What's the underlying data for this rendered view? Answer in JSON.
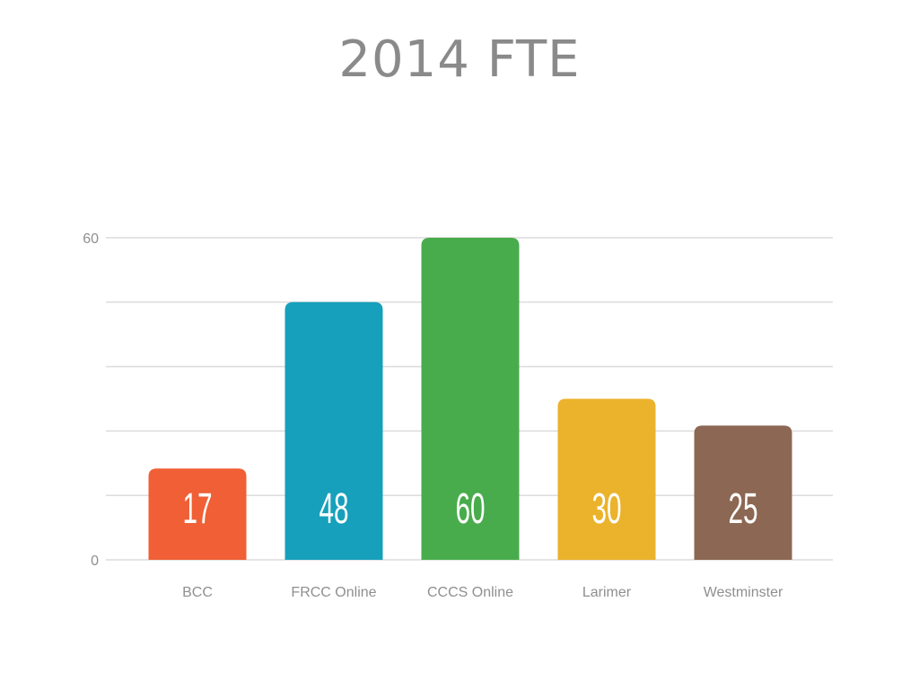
{
  "chart_data": {
    "type": "bar",
    "title": "2014 FTE",
    "categories": [
      "BCC",
      "FRCC Online",
      "CCCS Online",
      "Larimer",
      "Westminster"
    ],
    "values": [
      17,
      48,
      60,
      30,
      25
    ],
    "colors": [
      "#f05f35",
      "#16a0bb",
      "#49ac4c",
      "#ebb22b",
      "#8c6753"
    ],
    "ylim": [
      0,
      60
    ],
    "yticks": [
      "0",
      "60"
    ],
    "grid": true,
    "xlabel": "",
    "ylabel": ""
  }
}
